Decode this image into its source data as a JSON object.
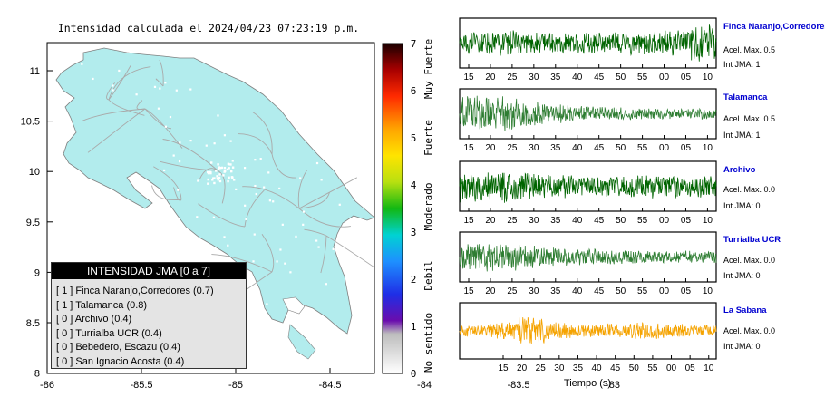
{
  "title": "Intensidad calculada el 2024/04/23_07:23:19_p.m.",
  "map": {
    "x_ticks": [
      "-86",
      "-85.5",
      "-85",
      "-84.5",
      "-84",
      "-83.5",
      "-83"
    ],
    "y_ticks": [
      "11",
      "10.5",
      "10",
      "9.5",
      "9",
      "8.5",
      "8"
    ],
    "land_color": "#b2eced"
  },
  "legend": {
    "title": "INTENSIDAD JMA [0 a 7]",
    "rows": [
      "[ 1 ]  Finca Naranjo,Corredores (0.7)",
      "[ 1 ]  Talamanca (0.8)",
      "[ 0 ]  Archivo (0.4)",
      "[ 0 ]  Turrialba UCR (0.4)",
      "[ 0 ]  Bebedero, Escazu (0.4)",
      "[ 0 ]  San Ignacio Acosta (0.4)"
    ]
  },
  "colorbar": {
    "ticks": [
      "7",
      "6",
      "5",
      "4",
      "3",
      "2",
      "1",
      "0"
    ],
    "labels": [
      "Muy Fuerte",
      "Fuerte",
      "Moderado",
      "Debil",
      "No sentido"
    ]
  },
  "stations": [
    {
      "name": "Finca Naranjo,Corredores",
      "acel": "Acel. Max. 0.5",
      "int": "Int JMA: 1",
      "color": "#006400",
      "ticks": [
        "15",
        "20",
        "25",
        "30",
        "35",
        "40",
        "45",
        "50",
        "55",
        "00",
        "05",
        "10"
      ]
    },
    {
      "name": "Talamanca",
      "acel": "Acel. Max. 0.5",
      "int": "Int JMA: 1",
      "color": "#2e7d32",
      "ticks": [
        "15",
        "20",
        "25",
        "30",
        "35",
        "40",
        "45",
        "50",
        "55",
        "00",
        "05",
        "10"
      ]
    },
    {
      "name": "Archivo",
      "acel": "Acel. Max. 0.0",
      "int": "Int JMA: 0",
      "color": "#006400",
      "ticks": [
        "15",
        "20",
        "25",
        "30",
        "35",
        "40",
        "45",
        "50",
        "55",
        "00",
        "05",
        "10"
      ]
    },
    {
      "name": "Turrialba UCR",
      "acel": "Acel. Max. 0.0",
      "int": "Int JMA: 0",
      "color": "#2e7d32",
      "ticks": [
        "15",
        "20",
        "25",
        "30",
        "35",
        "40",
        "45",
        "50",
        "55",
        "00",
        "05",
        "10"
      ]
    },
    {
      "name": "La Sabana",
      "acel": "Acel. Max. 0.0",
      "int": "Int JMA: 0",
      "color": "#f5a300",
      "ticks": [
        "15",
        "20",
        "25",
        "30",
        "35",
        "40",
        "45",
        "50",
        "55",
        "00",
        "05",
        "10"
      ]
    }
  ],
  "xlabel": "Tiempo (s)"
}
